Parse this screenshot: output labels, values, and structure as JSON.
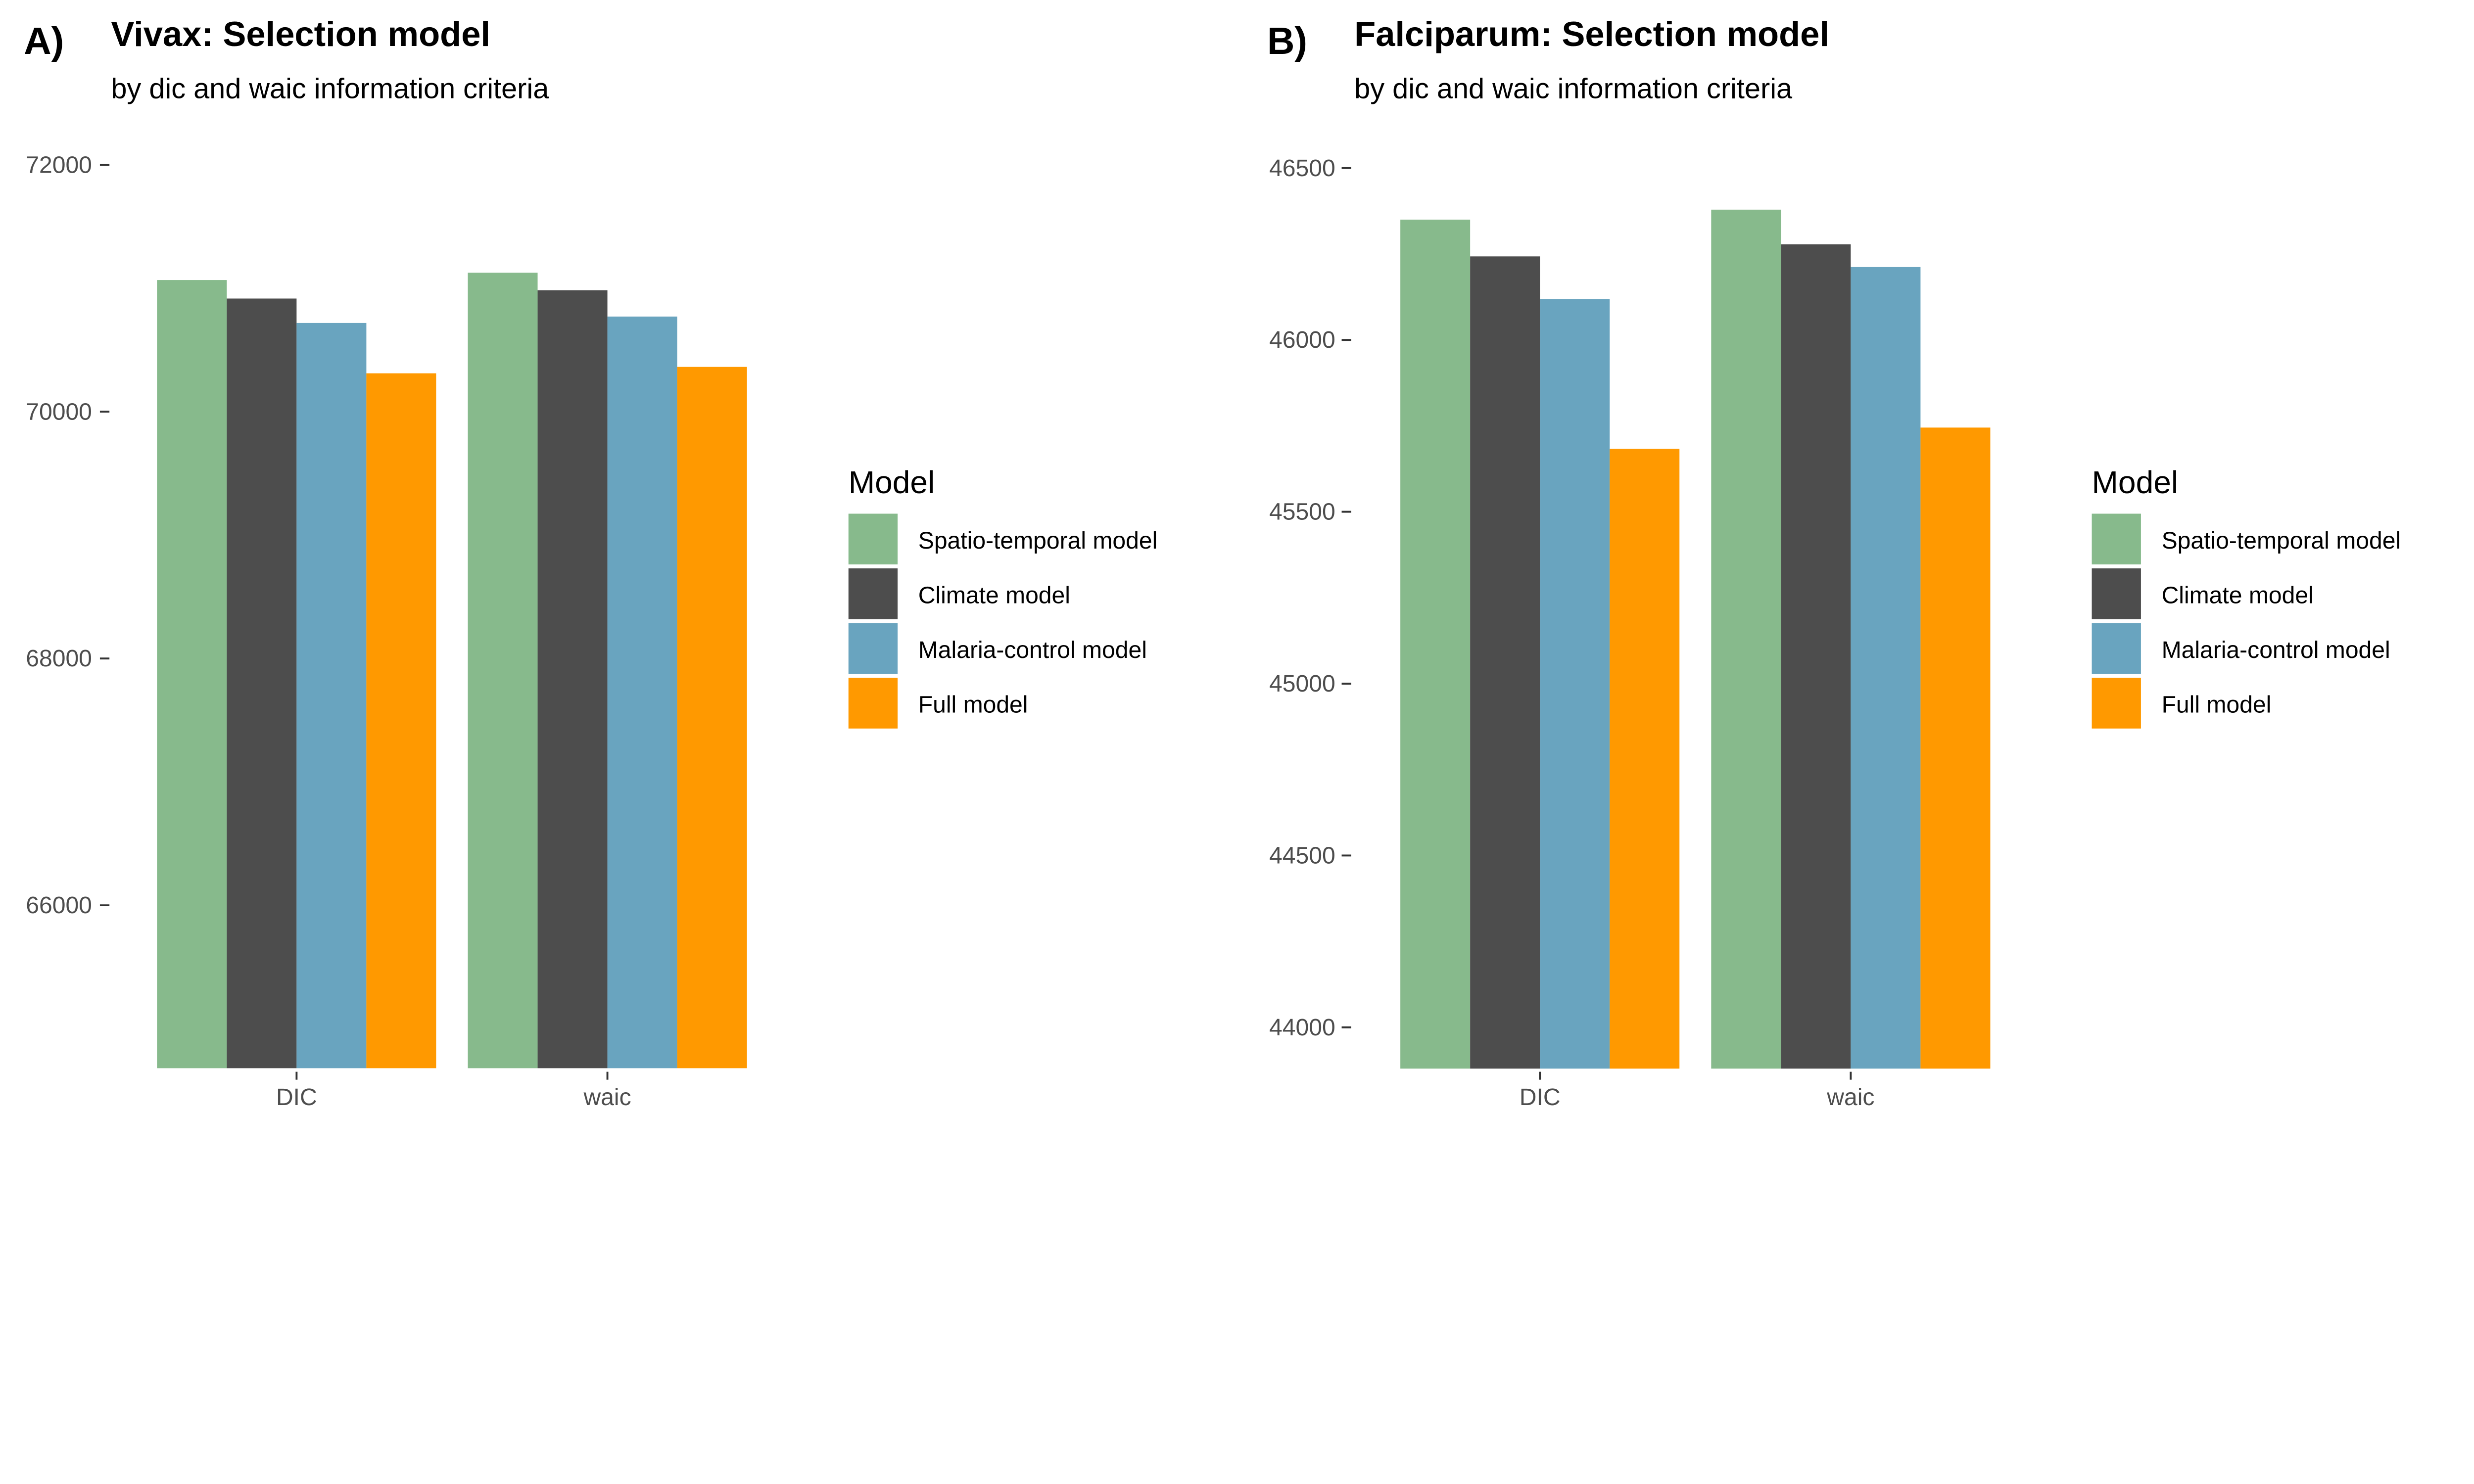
{
  "chart_data": [
    {
      "type": "bar",
      "panel_tag": "A)",
      "title": "Vivax: Selection model",
      "subtitle": "by dic and waic information criteria",
      "categories": [
        "DIC",
        "waic"
      ],
      "yticks": [
        "72000",
        "70000",
        "68000",
        "66000"
      ],
      "ylim": [
        64680,
        72000
      ],
      "legend_title": "Model",
      "legend_position": "right",
      "grid": false,
      "series": [
        {
          "name": "Spatio-temporal model",
          "color": "#87BA8C",
          "values": [
            71067,
            71126
          ]
        },
        {
          "name": "Climate model",
          "color": "#4D4D4D",
          "values": [
            70917,
            70984
          ]
        },
        {
          "name": "Malaria-control model",
          "color": "#69A4BF",
          "values": [
            70719,
            70771
          ]
        },
        {
          "name": "Full model",
          "color": "#FF9900",
          "values": [
            70311,
            70363
          ]
        }
      ]
    },
    {
      "type": "bar",
      "panel_tag": "B)",
      "title": "Falciparum: Selection model",
      "subtitle": "by dic and waic information criteria",
      "categories": [
        "DIC",
        "waic"
      ],
      "yticks": [
        "46500",
        "46000",
        "45500",
        "45000",
        "44500",
        "44000"
      ],
      "ylim": [
        43880,
        46500
      ],
      "legend_title": "Model",
      "legend_position": "right",
      "grid": false,
      "series": [
        {
          "name": "Spatio-temporal model",
          "color": "#87BA8C",
          "values": [
            46350,
            46379
          ]
        },
        {
          "name": "Climate model",
          "color": "#4D4D4D",
          "values": [
            46243,
            46278
          ]
        },
        {
          "name": "Malaria-control model",
          "color": "#69A4BF",
          "values": [
            46119,
            46212
          ]
        },
        {
          "name": "Full model",
          "color": "#FF9900",
          "values": [
            45683,
            45745
          ]
        }
      ]
    }
  ]
}
